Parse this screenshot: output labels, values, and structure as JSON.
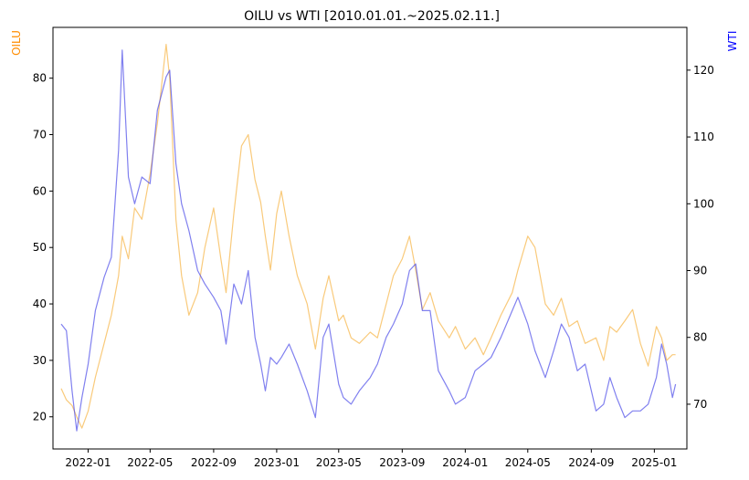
{
  "chart_data": {
    "type": "line",
    "title": "OILU vs WTI [2010.01.01.~2025.02.11.]",
    "xlabel": "",
    "x_ticks": [
      "2022-01",
      "2022-05",
      "2022-09",
      "2023-01",
      "2023-05",
      "2023-09",
      "2024-01",
      "2024-05",
      "2024-09",
      "2025-01"
    ],
    "x_range": [
      "2021-10-25",
      "2025-03-05"
    ],
    "grid": false,
    "legend": "none",
    "left_axis": {
      "label": "OILU",
      "color": "#ff8c00",
      "ylim": [
        14.3,
        89.0
      ],
      "ticks": [
        20,
        30,
        40,
        50,
        60,
        70,
        80
      ]
    },
    "right_axis": {
      "label": "WTI",
      "color": "#0000ff",
      "ylim": [
        63.3,
        126.4
      ],
      "ticks": [
        70,
        80,
        90,
        100,
        110,
        120
      ]
    },
    "series": [
      {
        "name": "OILU",
        "axis": "left",
        "color": "#f5a623",
        "x": [
          "2021-11-10",
          "2021-11-20",
          "2021-12-01",
          "2021-12-10",
          "2021-12-20",
          "2022-01-01",
          "2022-01-15",
          "2022-02-01",
          "2022-02-15",
          "2022-03-01",
          "2022-03-08",
          "2022-03-20",
          "2022-04-01",
          "2022-04-15",
          "2022-05-01",
          "2022-05-15",
          "2022-06-01",
          "2022-06-08",
          "2022-06-20",
          "2022-07-01",
          "2022-07-15",
          "2022-08-01",
          "2022-08-15",
          "2022-09-01",
          "2022-09-15",
          "2022-09-25",
          "2022-10-10",
          "2022-10-25",
          "2022-11-07",
          "2022-11-20",
          "2022-12-01",
          "2022-12-10",
          "2022-12-20",
          "2023-01-01",
          "2023-01-10",
          "2023-01-25",
          "2023-02-10",
          "2023-03-01",
          "2023-03-17",
          "2023-04-01",
          "2023-04-12",
          "2023-05-01",
          "2023-05-10",
          "2023-05-25",
          "2023-06-10",
          "2023-07-01",
          "2023-07-15",
          "2023-08-01",
          "2023-08-15",
          "2023-09-01",
          "2023-09-15",
          "2023-09-27",
          "2023-10-10",
          "2023-10-25",
          "2023-11-10",
          "2023-12-01",
          "2023-12-13",
          "2024-01-01",
          "2024-01-20",
          "2024-02-05",
          "2024-02-20",
          "2024-03-10",
          "2024-04-01",
          "2024-04-12",
          "2024-05-01",
          "2024-05-15",
          "2024-06-04",
          "2024-06-20",
          "2024-07-05",
          "2024-07-20",
          "2024-08-05",
          "2024-08-20",
          "2024-09-10",
          "2024-09-25",
          "2024-10-07",
          "2024-10-20",
          "2024-11-05",
          "2024-11-20",
          "2024-12-05",
          "2024-12-20",
          "2025-01-05",
          "2025-01-15",
          "2025-01-25",
          "2025-02-05",
          "2025-02-11"
        ],
        "values": [
          25,
          23,
          22,
          20,
          18,
          21,
          27,
          33,
          38,
          45,
          52,
          48,
          57,
          55,
          63,
          72,
          86,
          80,
          55,
          45,
          38,
          42,
          50,
          57,
          48,
          42,
          56,
          68,
          70,
          62,
          58,
          52,
          46,
          56,
          60,
          52,
          45,
          40,
          32,
          41,
          45,
          37,
          38,
          34,
          33,
          35,
          34,
          40,
          45,
          48,
          52,
          46,
          39,
          42,
          37,
          34,
          36,
          32,
          34,
          31,
          34,
          38,
          42,
          46,
          52,
          50,
          40,
          38,
          41,
          36,
          37,
          33,
          34,
          30,
          36,
          35,
          37,
          39,
          33,
          29,
          36,
          34,
          30,
          31,
          31
        ]
      },
      {
        "name": "WTI",
        "axis": "right",
        "color": "#4a4ae8",
        "x": [
          "2021-11-10",
          "2021-11-20",
          "2021-12-01",
          "2021-12-10",
          "2021-12-20",
          "2022-01-01",
          "2022-01-15",
          "2022-02-01",
          "2022-02-15",
          "2022-03-01",
          "2022-03-08",
          "2022-03-20",
          "2022-04-01",
          "2022-04-15",
          "2022-05-01",
          "2022-05-15",
          "2022-06-01",
          "2022-06-08",
          "2022-06-20",
          "2022-07-01",
          "2022-07-15",
          "2022-08-01",
          "2022-08-15",
          "2022-09-01",
          "2022-09-15",
          "2022-09-25",
          "2022-10-10",
          "2022-10-25",
          "2022-11-07",
          "2022-11-20",
          "2022-12-01",
          "2022-12-10",
          "2022-12-20",
          "2023-01-01",
          "2023-01-10",
          "2023-01-25",
          "2023-02-10",
          "2023-03-01",
          "2023-03-17",
          "2023-04-01",
          "2023-04-12",
          "2023-05-01",
          "2023-05-10",
          "2023-05-25",
          "2023-06-10",
          "2023-07-01",
          "2023-07-15",
          "2023-08-01",
          "2023-08-15",
          "2023-09-01",
          "2023-09-15",
          "2023-09-27",
          "2023-10-10",
          "2023-10-25",
          "2023-11-10",
          "2023-12-01",
          "2023-12-13",
          "2024-01-01",
          "2024-01-20",
          "2024-02-05",
          "2024-02-20",
          "2024-03-10",
          "2024-04-01",
          "2024-04-12",
          "2024-05-01",
          "2024-05-15",
          "2024-06-04",
          "2024-06-20",
          "2024-07-05",
          "2024-07-20",
          "2024-08-05",
          "2024-08-20",
          "2024-09-10",
          "2024-09-25",
          "2024-10-07",
          "2024-10-20",
          "2024-11-05",
          "2024-11-20",
          "2024-12-05",
          "2024-12-20",
          "2025-01-05",
          "2025-01-15",
          "2025-01-25",
          "2025-02-05",
          "2025-02-11"
        ],
        "values": [
          82,
          81,
          72,
          66,
          71,
          76,
          84,
          89,
          92,
          108,
          123,
          104,
          100,
          104,
          103,
          114,
          119,
          120,
          106,
          100,
          96,
          90,
          88,
          86,
          84,
          79,
          88,
          85,
          90,
          80,
          76,
          72,
          77,
          76,
          77,
          79,
          76,
          72,
          68,
          80,
          82,
          73,
          71,
          70,
          72,
          74,
          76,
          80,
          82,
          85,
          90,
          91,
          84,
          84,
          75,
          72,
          70,
          71,
          75,
          76,
          77,
          80,
          84,
          86,
          82,
          78,
          74,
          78,
          82,
          80,
          75,
          76,
          69,
          70,
          74,
          71,
          68,
          69,
          69,
          70,
          74,
          79,
          76,
          71,
          73
        ]
      }
    ]
  }
}
